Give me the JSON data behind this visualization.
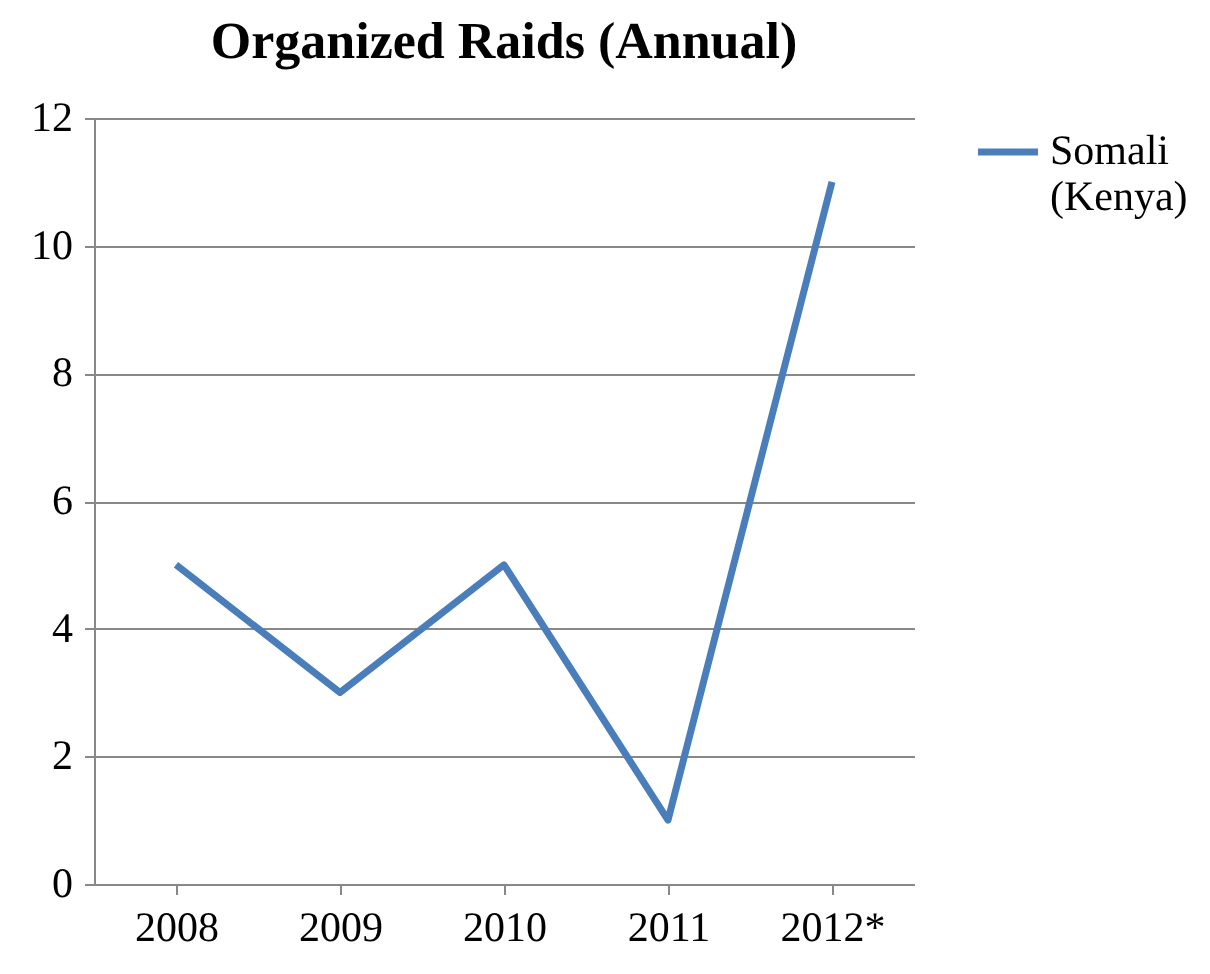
{
  "chart_data": {
    "type": "line",
    "title": "Organized Raids (Annual)",
    "categories": [
      "2008",
      "2009",
      "2010",
      "2011",
      "2012*"
    ],
    "series": [
      {
        "name": "Somali (Kenya)",
        "color": "#4a7ebb",
        "values": [
          5,
          3,
          5,
          1,
          11
        ]
      }
    ],
    "ylim": [
      0,
      12
    ],
    "yticks": [
      0,
      2,
      4,
      6,
      8,
      10,
      12
    ],
    "grid": "y",
    "legend": "right",
    "marker": "none",
    "line_style": "solid"
  }
}
